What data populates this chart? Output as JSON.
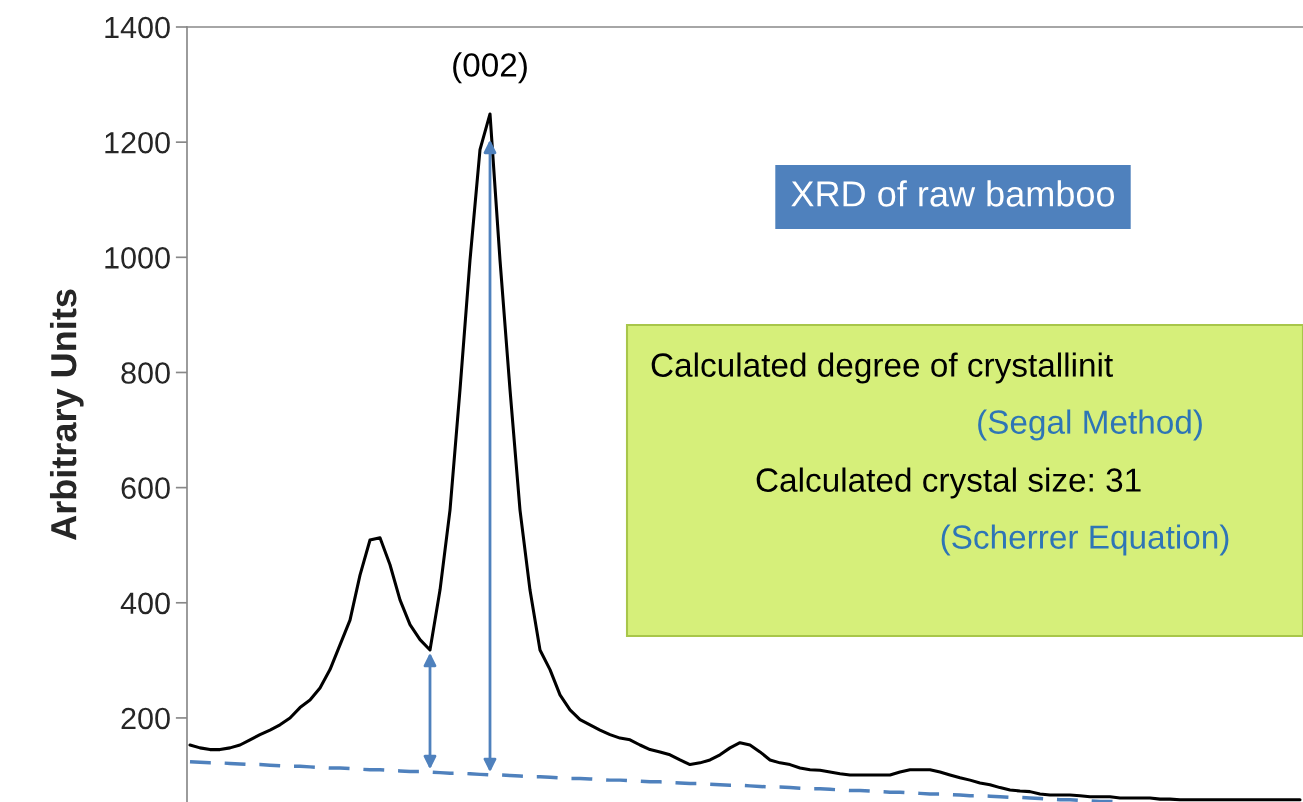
{
  "chart_data": {
    "type": "line",
    "ylabel": "Arbitrary Units",
    "categories": [
      null,
      null,
      null,
      null,
      null,
      null,
      null,
      null,
      null,
      null,
      null,
      null,
      null,
      null,
      null,
      null,
      null,
      null,
      null,
      null,
      null,
      null,
      null,
      null,
      null,
      null,
      null,
      null,
      null,
      null,
      null,
      null,
      null,
      null,
      null,
      null,
      null,
      null,
      null,
      null,
      null,
      null,
      null,
      null,
      null,
      null,
      null,
      null,
      null,
      null,
      null,
      null,
      null,
      null,
      null,
      null,
      null,
      null,
      null,
      null,
      null,
      null,
      null,
      null,
      null,
      null,
      null,
      null,
      null,
      null,
      null,
      null,
      null,
      null,
      null,
      null,
      null,
      null,
      null,
      null,
      null,
      null,
      null,
      null,
      null,
      null,
      null,
      null,
      null,
      null,
      null,
      null,
      null,
      null,
      null,
      null,
      null,
      null,
      null,
      null,
      null,
      null,
      null,
      null,
      null,
      null,
      null,
      null,
      null,
      null,
      null,
      null
    ],
    "series": [
      {
        "color": "#000000",
        "line_style": "solid",
        "values": [
          153,
          148,
          145,
          145,
          148,
          153,
          162,
          171,
          179,
          188,
          200,
          218,
          231,
          252,
          284,
          327,
          370,
          448,
          509,
          513,
          466,
          405,
          362,
          336,
          318,
          422,
          561,
          770,
          995,
          1187,
          1249,
          995,
          770,
          561,
          422,
          318,
          284,
          240,
          214,
          197,
          188,
          179,
          171,
          165,
          162,
          153,
          145,
          141,
          136,
          127,
          119,
          122,
          127,
          136,
          148,
          157,
          153,
          141,
          127,
          122,
          119,
          113,
          110,
          109,
          106,
          103,
          101,
          101,
          101,
          101,
          101,
          106,
          110,
          110,
          110,
          106,
          101,
          96,
          92,
          87,
          84,
          79,
          75,
          73,
          72,
          68,
          66,
          66,
          66,
          65,
          63,
          63,
          63,
          61,
          61,
          61,
          61,
          59,
          59,
          58,
          58,
          58,
          58,
          58,
          58,
          58,
          58,
          58,
          58,
          58,
          58,
          58
        ]
      },
      {
        "type": "line",
        "color": "#4f81bd",
        "line_style": "dashed",
        "values": [
          124,
          123,
          122,
          122,
          121,
          120,
          119,
          119,
          118,
          117,
          116,
          116,
          115,
          114,
          113,
          113,
          112,
          111,
          110,
          110,
          109,
          108,
          107,
          107,
          106,
          105,
          104,
          104,
          103,
          102,
          101,
          101,
          100,
          99,
          98,
          98,
          97,
          96,
          95,
          95,
          94,
          93,
          92,
          92,
          91,
          90,
          89,
          89,
          88,
          87,
          86,
          86,
          85,
          84,
          83,
          83,
          82,
          81,
          80,
          80,
          79,
          78,
          77,
          77,
          76,
          75,
          74,
          74,
          73,
          72,
          71,
          71,
          70,
          69,
          68,
          68,
          67,
          66,
          65,
          65,
          64,
          63,
          62,
          62,
          61,
          60,
          59,
          58,
          58,
          57,
          56,
          55,
          55,
          54,
          null,
          null,
          null,
          null,
          null,
          null,
          null,
          null,
          null,
          null,
          null,
          null,
          null,
          null,
          null,
          null,
          null,
          null
        ]
      }
    ],
    "ylim": [
      54,
      1400
    ],
    "yticks": [
      200,
      400,
      600,
      800,
      1000,
      1200,
      1400
    ],
    "tick_labels": "y",
    "grid": false,
    "legend": false,
    "annotations": [
      "(002)",
      "XRD of raw bamboo",
      "Calculated degree of crystallinit",
      "(Segal Method)",
      "Calculated crystal size: 31",
      "(Scherrer Equation)"
    ]
  }
}
